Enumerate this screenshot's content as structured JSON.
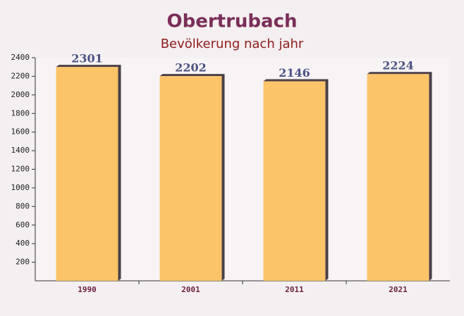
{
  "chart_data": {
    "type": "bar",
    "title": "Obertrubach",
    "subtitle": "Bevölkerung nach jahr",
    "categories": [
      "1990",
      "2001",
      "2011",
      "2021"
    ],
    "values": [
      2301,
      2202,
      2146,
      2224
    ],
    "color": "#fbbf5a",
    "ylim": [
      0,
      2400
    ],
    "yticks": [
      200,
      400,
      600,
      800,
      1000,
      1200,
      1400,
      1600,
      1800,
      2000,
      2200,
      2400
    ]
  }
}
